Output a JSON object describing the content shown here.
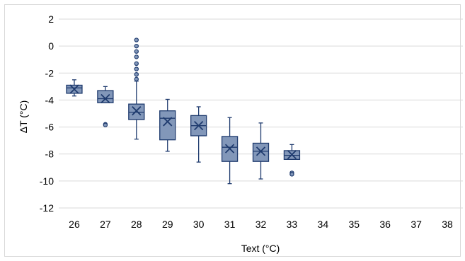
{
  "chart_data": {
    "type": "box",
    "title": "",
    "xlabel": "Text (°C)",
    "ylabel": "ΔT (°C)",
    "ylim": [
      -12,
      2
    ],
    "y_ticks": [
      2,
      0,
      -2,
      -4,
      -6,
      -8,
      -10,
      -12
    ],
    "y_tick_labels": [
      "2",
      "0",
      "-2",
      "-4",
      "-6",
      "-8",
      "-10",
      "-12"
    ],
    "categories": [
      "26",
      "27",
      "28",
      "29",
      "30",
      "31",
      "32",
      "33",
      "34",
      "35",
      "36",
      "37",
      "38"
    ],
    "grid": true,
    "legend": "none",
    "colors": {
      "box_fill": "#8297b9",
      "box_stroke": "#1f3b6e",
      "grid": "#d9d9d9"
    },
    "boxes": [
      {
        "category": "26",
        "min": -3.7,
        "q1": -3.5,
        "median": -3.1,
        "q3": -2.9,
        "max": -2.5,
        "mean": -3.2,
        "outliers": []
      },
      {
        "category": "27",
        "min": -4.2,
        "q1": -4.2,
        "median": -3.9,
        "q3": -3.3,
        "max": -3.0,
        "mean": -3.9,
        "outliers": [
          -5.8,
          -5.85
        ]
      },
      {
        "category": "28",
        "min": -6.9,
        "q1": -5.45,
        "median": -4.9,
        "q3": -4.3,
        "max": -2.6,
        "mean": -4.8,
        "outliers": [
          -2.45,
          -2.1,
          -1.7,
          -1.3,
          -0.8,
          -0.4,
          0.0,
          0.45
        ]
      },
      {
        "category": "29",
        "min": -7.8,
        "q1": -6.95,
        "median": -5.35,
        "q3": -4.8,
        "max": -3.95,
        "mean": -5.6,
        "outliers": []
      },
      {
        "category": "30",
        "min": -8.6,
        "q1": -6.65,
        "median": -5.9,
        "q3": -5.15,
        "max": -4.5,
        "mean": -5.9,
        "outliers": []
      },
      {
        "category": "31",
        "min": -10.2,
        "q1": -8.55,
        "median": -7.5,
        "q3": -6.7,
        "max": -5.3,
        "mean": -7.6,
        "outliers": []
      },
      {
        "category": "32",
        "min": -9.85,
        "q1": -8.55,
        "median": -7.8,
        "q3": -7.2,
        "max": -5.7,
        "mean": -7.8,
        "outliers": []
      },
      {
        "category": "33",
        "min": -8.4,
        "q1": -8.4,
        "median": -8.1,
        "q3": -7.75,
        "max": -7.3,
        "mean": -8.05,
        "outliers": [
          -9.4,
          -9.5
        ]
      }
    ]
  }
}
